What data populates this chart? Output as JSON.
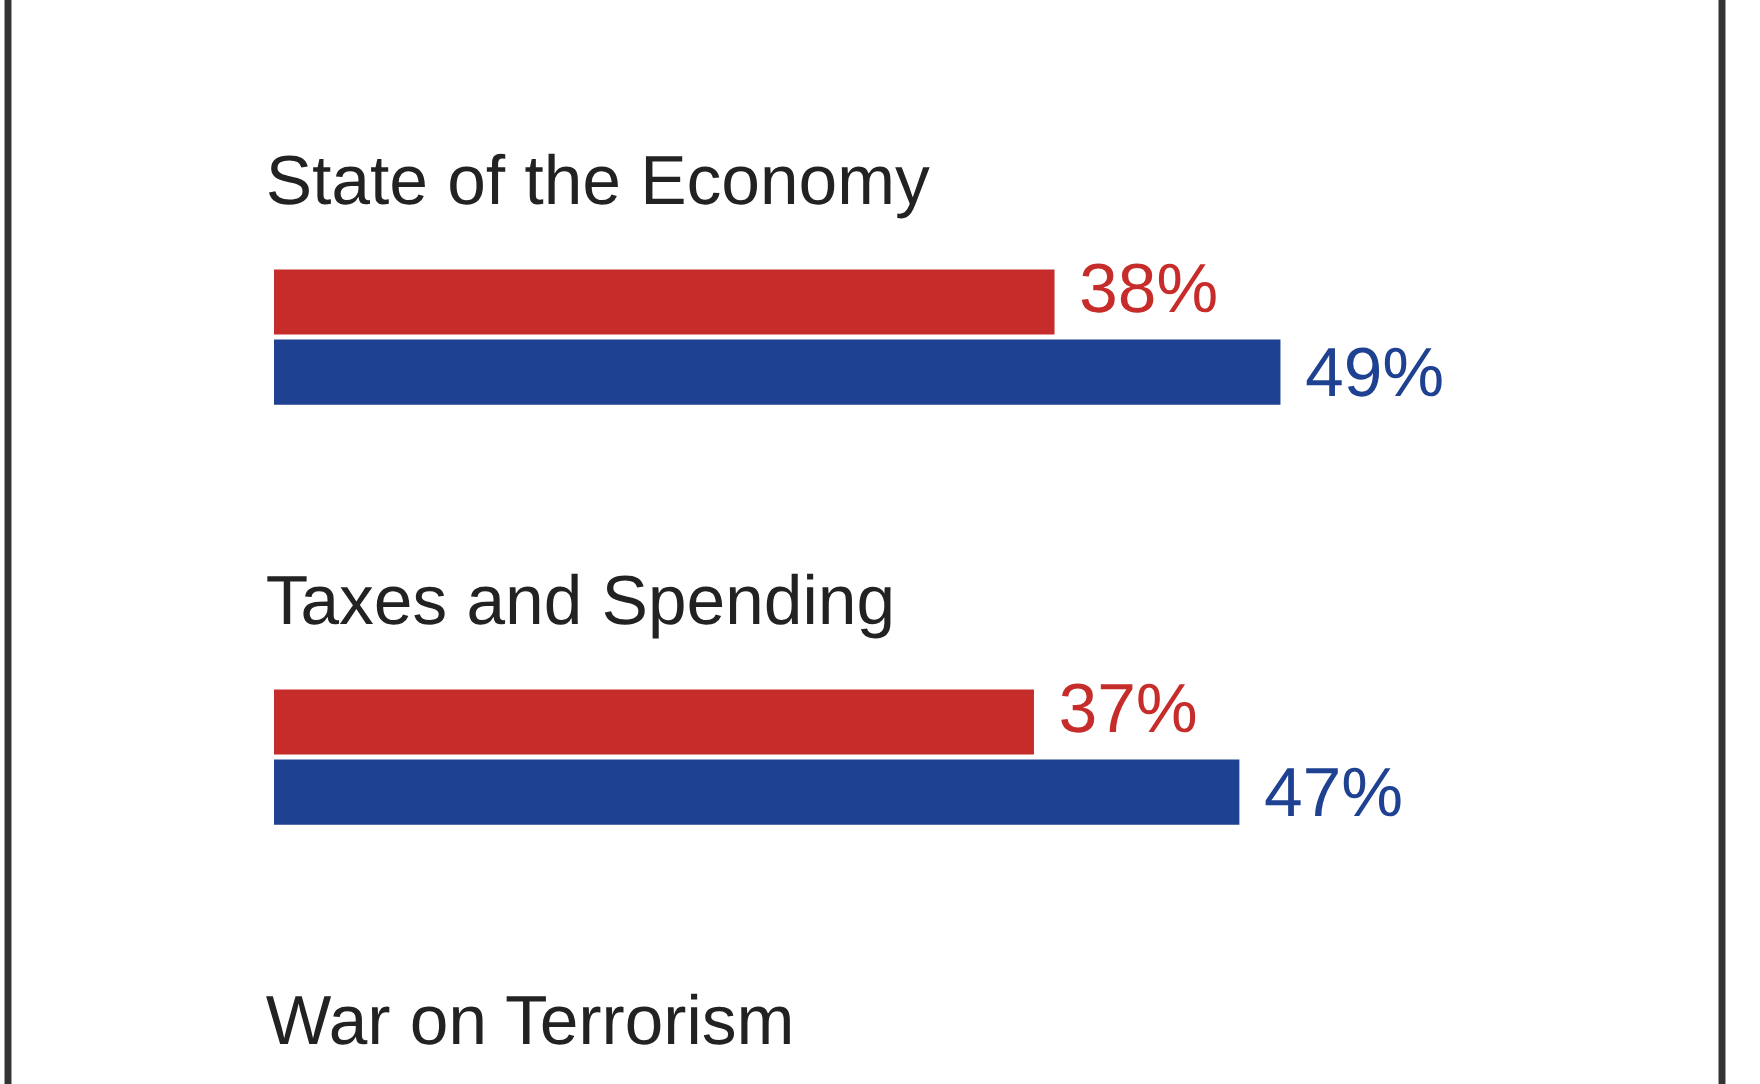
{
  "chart_data": {
    "type": "bar",
    "orientation": "horizontal",
    "categories": [
      "State of the Economy",
      "Taxes and Spending",
      "War on Terrorism"
    ],
    "series": [
      {
        "color": "#c62d2a",
        "values": [
          38,
          37,
          null
        ],
        "value_labels": [
          "38%",
          "37%",
          null
        ]
      },
      {
        "color": "#1f4191",
        "values": [
          49,
          47,
          null
        ],
        "value_labels": [
          "49%",
          "47%",
          null
        ]
      }
    ]
  }
}
